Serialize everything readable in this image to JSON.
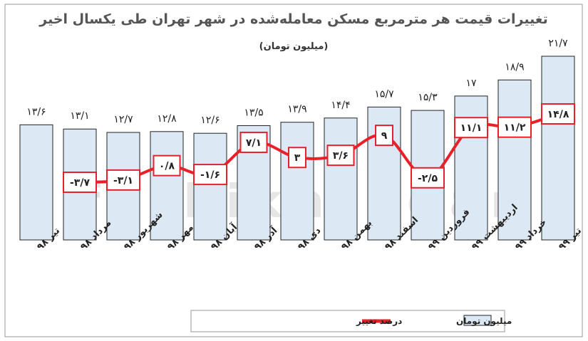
{
  "chart_data": {
    "type": "bar",
    "title": "تغییرات قیمت هر مترمربع مسکن معامله‌شده در شهر تهران طی یکسال اخیر",
    "subtitle": "(میلیون تومان)",
    "categories": [
      "تیر ۹۸",
      "مرداد ۹۸",
      "شهریور ۹۸",
      "مهر ۹۸",
      "آبان ۹۸",
      "آذر ۹۸",
      "دی ۹۸",
      "بهمن ۹۸",
      "اسفند ۹۸",
      "فروردین ۹۹",
      "اردیبهشت ۹۹",
      "خرداد ۹۹",
      "تیر ۹۹"
    ],
    "series": [
      {
        "name": "میلیون تومان",
        "type": "bar",
        "values": [
          13.6,
          13.1,
          12.7,
          12.8,
          12.6,
          13.5,
          13.9,
          14.4,
          15.7,
          15.3,
          17,
          18.9,
          21.7
        ],
        "labels": [
          "۱۳/۶",
          "۱۳/۱",
          "۱۲/۷",
          "۱۲/۸",
          "۱۲/۶",
          "۱۳/۵",
          "۱۳/۹",
          "۱۴/۴",
          "۱۵/۷",
          "۱۵/۳",
          "۱۷",
          "۱۸/۹",
          "۲۱/۷"
        ],
        "color": "#dce9f5"
      },
      {
        "name": "درصد تغییر",
        "type": "line",
        "values": [
          null,
          -3.7,
          -3.1,
          0.8,
          -1.6,
          7.1,
          3,
          3.6,
          9,
          -2.5,
          11.1,
          11.2,
          14.8
        ],
        "labels": [
          "",
          "-۳/۷",
          "-۳/۱",
          "۰/۸",
          "-۱/۶",
          "۷/۱",
          "۳",
          "۳/۶",
          "۹",
          "-۲/۵",
          "۱۱/۱",
          "۱۱/۲",
          "۱۴/۸"
        ],
        "color": "#e8202a"
      }
    ],
    "legend": {
      "placement": "bottom",
      "entries": [
        "میلیون تومان",
        "درصد تغییر"
      ]
    },
    "grid": false
  },
  "watermark": "farhikhtegan"
}
